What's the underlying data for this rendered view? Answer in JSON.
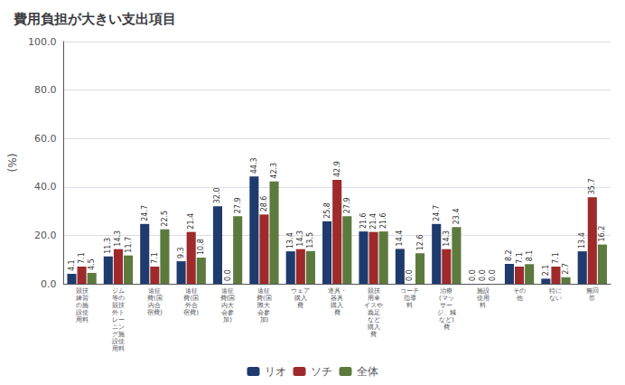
{
  "chart_data": {
    "type": "bar",
    "title": "費用負担が大きい支出項目",
    "ylabel": "(%)",
    "categories": [
      "競技\n練習\nの施\n設使\n用料",
      "ジム\n等の\n競技\n外ト\nレー\nニン\nグ施\n設使\n用料",
      "遠征\n費(国\n内合\n宿費)",
      "遠征\n費(国\n外合\n宿費)",
      "遠征\n費(国\n内大\n会参\n加)",
      "遠征\n費(国\n際大\n会参\n加)",
      "ウェア\n購入\n費",
      "道具・\n器具\n購入\n費",
      "競技\n用車\nイスや\n義足\nなど\n購入\n費",
      "コーチ\n指導\n料",
      "治療\n(マッ\nサー\nジ、鍼\nなど)\n費",
      "施設\n使用\n料",
      "その\n他",
      "特に\nない",
      "無回\n答"
    ],
    "series": [
      {
        "name": "リオ",
        "color": "#1F3B6E",
        "values": [
          4.1,
          11.3,
          24.7,
          9.3,
          32.0,
          44.3,
          13.4,
          25.8,
          21.6,
          14.4,
          24.7,
          0.0,
          8.2,
          2.1,
          13.4
        ],
        "value_labels": [
          "4.1",
          "11.3",
          "24.7",
          "9.3",
          "32.0",
          "44.3",
          "13.4",
          "25.8",
          "21.6",
          "14.4",
          "24.7",
          "0.0",
          "8.2",
          "2.1",
          "13.4"
        ]
      },
      {
        "name": "ソチ",
        "color": "#9E2A2B",
        "values": [
          7.1,
          14.3,
          7.1,
          21.4,
          0.0,
          28.6,
          14.3,
          42.9,
          21.4,
          0.0,
          14.3,
          0.0,
          7.1,
          7.1,
          35.7
        ],
        "value_labels": [
          "7.1",
          "14.3",
          "7.1",
          "21.4",
          "0.0",
          "28.6",
          "14.3",
          "42.9",
          "21.4",
          "0.0",
          "14.3",
          "0.0",
          "7.1",
          "7.1",
          "35.7"
        ]
      },
      {
        "name": "全体",
        "color": "#5D7A3E",
        "values": [
          4.5,
          11.7,
          22.5,
          10.8,
          27.9,
          42.3,
          13.5,
          27.9,
          21.6,
          12.6,
          23.4,
          0.0,
          8.1,
          2.7,
          16.2
        ],
        "value_labels": [
          "4.5",
          "11.7",
          "22.5",
          "10.8",
          "27.9",
          "42.3",
          "13.5",
          "27.9",
          "21.6",
          "12.6",
          "23.4",
          "0.0",
          "8.1",
          "2.7",
          "16.2"
        ]
      }
    ],
    "ylim": [
      0,
      100
    ],
    "yticks": [
      {
        "value": 0,
        "label": "0.0"
      },
      {
        "value": 20,
        "label": "20.0"
      },
      {
        "value": 40,
        "label": "40.0"
      },
      {
        "value": 60,
        "label": "60.0"
      },
      {
        "value": 80,
        "label": "80.0"
      },
      {
        "value": 100,
        "label": "100.0"
      }
    ],
    "grid": true,
    "legend": "bottom",
    "data_labels": true
  }
}
